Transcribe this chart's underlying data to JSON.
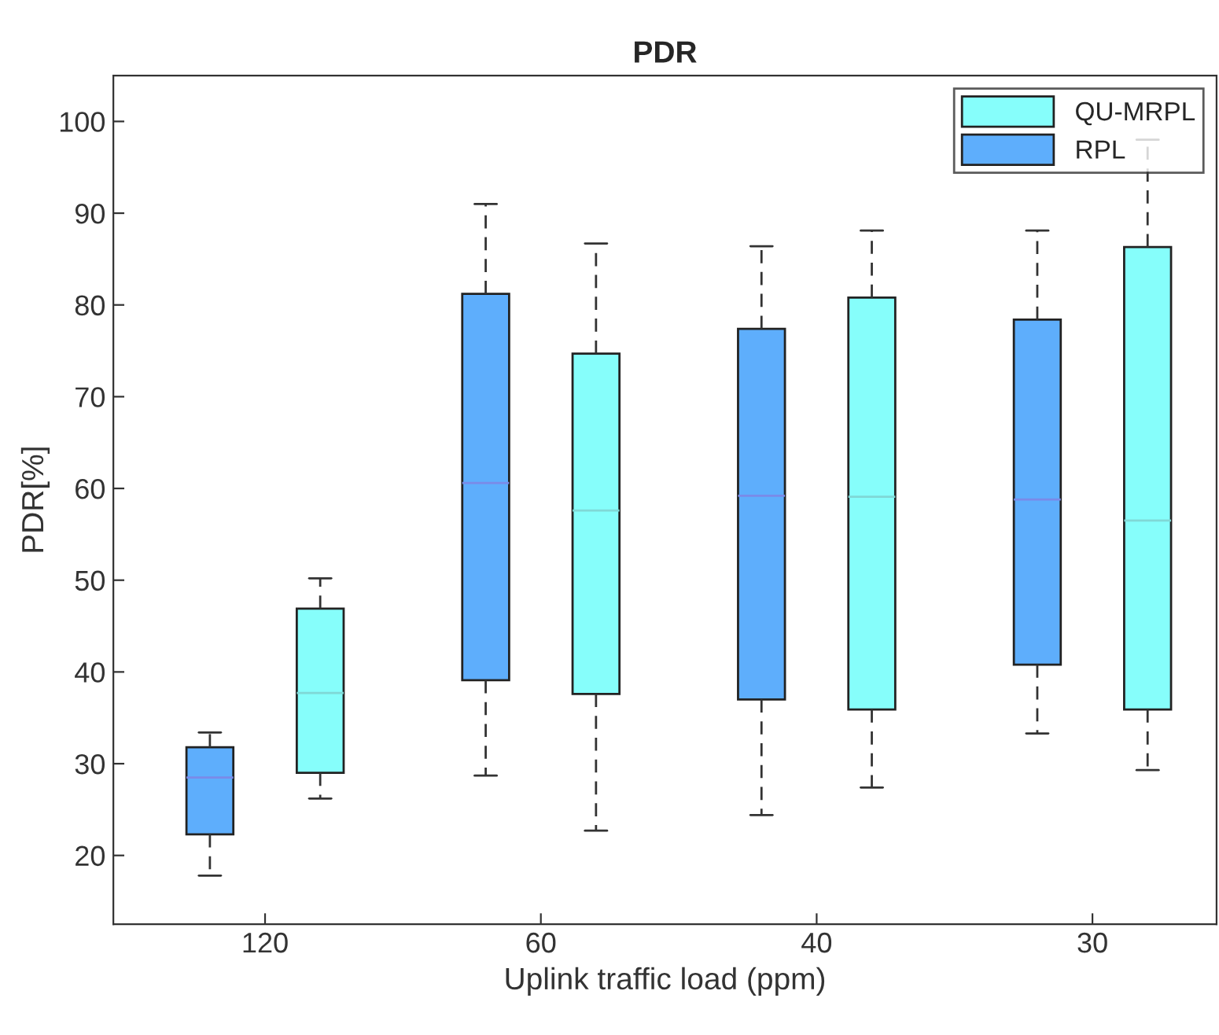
{
  "chart_data": {
    "type": "box",
    "title": "PDR",
    "xlabel": "Uplink traffic load (ppm)",
    "ylabel": "PDR[%]",
    "categories": [
      "120",
      "60",
      "40",
      "30"
    ],
    "ylim": [
      12.5,
      105
    ],
    "yticks": [
      20,
      30,
      40,
      50,
      60,
      70,
      80,
      90,
      100
    ],
    "grid": false,
    "legend": "top right",
    "series": [
      {
        "name": "QU-MRPL",
        "color": "#86fefb",
        "boxes": [
          {
            "low": 26.2,
            "q1": 29.0,
            "median": 37.7,
            "q3": 46.9,
            "high": 50.2
          },
          {
            "low": 22.7,
            "q1": 37.6,
            "median": 57.6,
            "q3": 74.7,
            "high": 86.7
          },
          {
            "low": 27.4,
            "q1": 35.9,
            "median": 59.1,
            "q3": 80.8,
            "high": 88.1
          },
          {
            "low": 29.3,
            "q1": 35.9,
            "median": 56.5,
            "q3": 86.3,
            "high": 98
          }
        ]
      },
      {
        "name": "RPL",
        "color": "#5eaefc",
        "boxes": [
          {
            "low": 17.8,
            "q1": 22.3,
            "median": 28.5,
            "q3": 31.8,
            "high": 33.4
          },
          {
            "low": 28.7,
            "q1": 39.1,
            "median": 60.6,
            "q3": 81.2,
            "high": 91.0
          },
          {
            "low": 24.4,
            "q1": 37.0,
            "median": 59.2,
            "q3": 77.4,
            "high": 86.4
          },
          {
            "low": 33.3,
            "q1": 40.8,
            "median": 58.8,
            "q3": 78.4,
            "high": 88.1
          }
        ]
      }
    ]
  }
}
